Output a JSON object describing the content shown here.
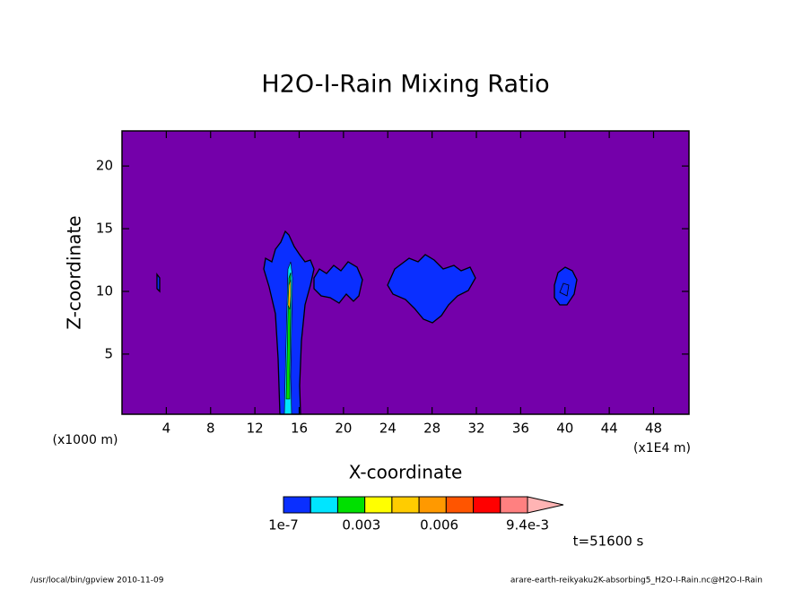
{
  "chart_data": {
    "type": "contour",
    "title": "H2O-I-Rain Mixing Ratio",
    "x_label": "X-coordinate",
    "y_label": "Z-coordinate",
    "x_unit": "(x1E4 m)",
    "y_unit": "(x1000 m)",
    "xlim": [
      0,
      51.2
    ],
    "ylim": [
      0.2,
      22.8
    ],
    "xticks": [
      4,
      8,
      12,
      16,
      20,
      24,
      28,
      32,
      36,
      40,
      44,
      48
    ],
    "yticks": [
      5,
      10,
      15,
      20
    ],
    "background_color": "#7400aa",
    "colorbar": {
      "colors": [
        "#0a2fff",
        "#00e5ff",
        "#00e000",
        "#ffff00",
        "#ffcc00",
        "#ff9900",
        "#ff5500",
        "#ff0000",
        "#ff8080"
      ],
      "over_color": "#ffb4b4",
      "clim": [
        0,
        0.0094
      ],
      "ticks": [
        {
          "value": 1e-07,
          "label": "1e-7"
        },
        0.003,
        0.006,
        {
          "value": 0.0094,
          "label": "9.4e-3"
        }
      ]
    },
    "time_label": "t=51600 s",
    "footer_left": "/usr/local/bin/gpview  2010-11-09",
    "footer_right": "arare-earth-reikyaku2K-absorbing5_H2O-I-Rain.nc@H2O-I-Rain"
  }
}
